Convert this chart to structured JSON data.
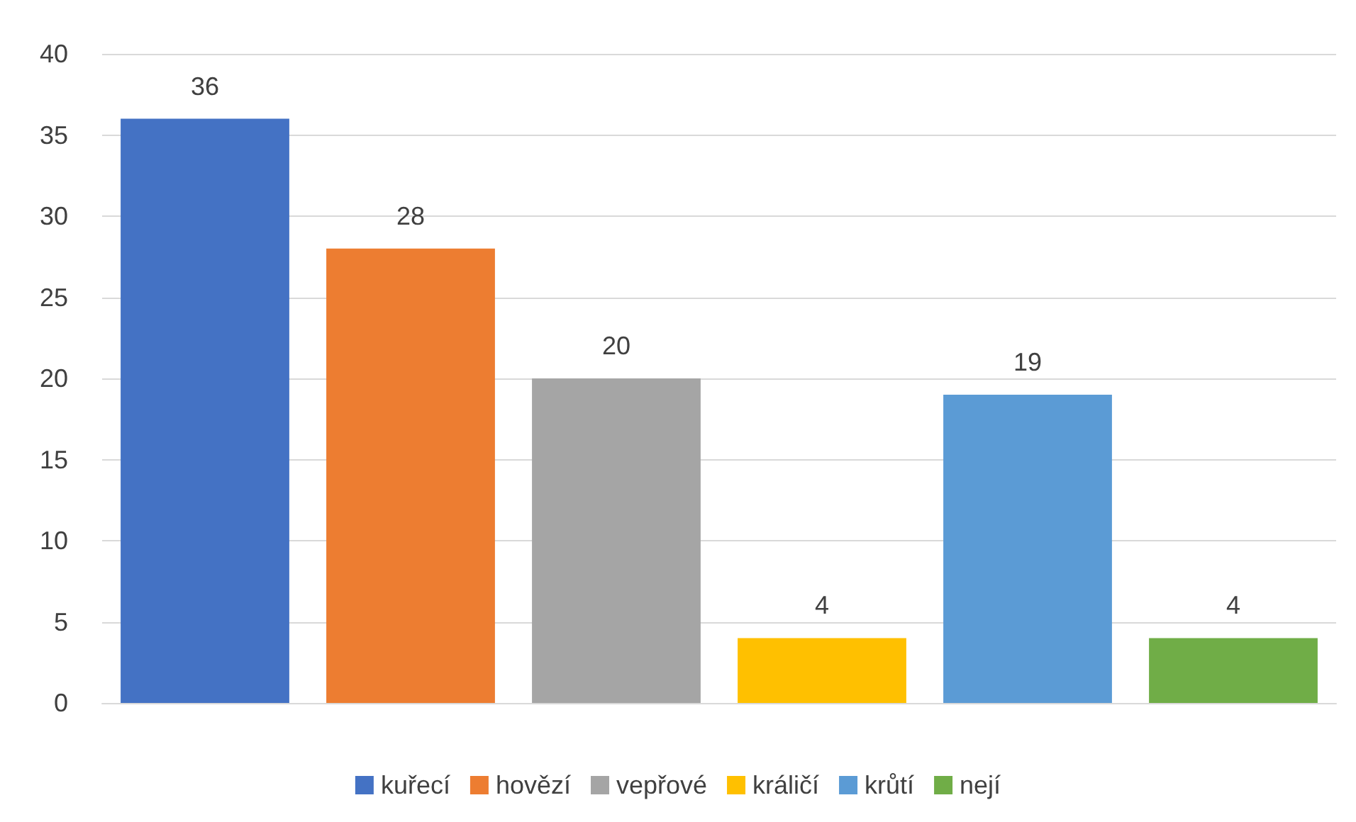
{
  "chart_data": {
    "type": "bar",
    "categories": [
      null,
      null,
      null,
      null,
      null,
      null
    ],
    "series": [
      {
        "name": "kuřecí",
        "color": "#4472c4",
        "values": [
          36,
          null,
          null,
          null,
          null,
          null
        ]
      },
      {
        "name": "hovězí",
        "color": "#ed7d31",
        "values": [
          null,
          28,
          null,
          null,
          null,
          null
        ]
      },
      {
        "name": "vepřové",
        "color": "#a5a5a5",
        "values": [
          null,
          null,
          20,
          null,
          null,
          null
        ]
      },
      {
        "name": "králičí",
        "color": "#ffc000",
        "values": [
          null,
          null,
          null,
          4,
          null,
          null
        ]
      },
      {
        "name": "krůtí",
        "color": "#5b9bd5",
        "values": [
          null,
          null,
          null,
          null,
          19,
          null
        ]
      },
      {
        "name": "nejí",
        "color": "#70ad47",
        "values": [
          null,
          null,
          null,
          null,
          null,
          4
        ]
      }
    ],
    "stacked": true,
    "ylim": [
      0,
      40
    ],
    "yticks": [
      0,
      5,
      10,
      15,
      20,
      25,
      30,
      35,
      40
    ],
    "grid": "y",
    "legend": "bottom",
    "data_labels": true
  }
}
